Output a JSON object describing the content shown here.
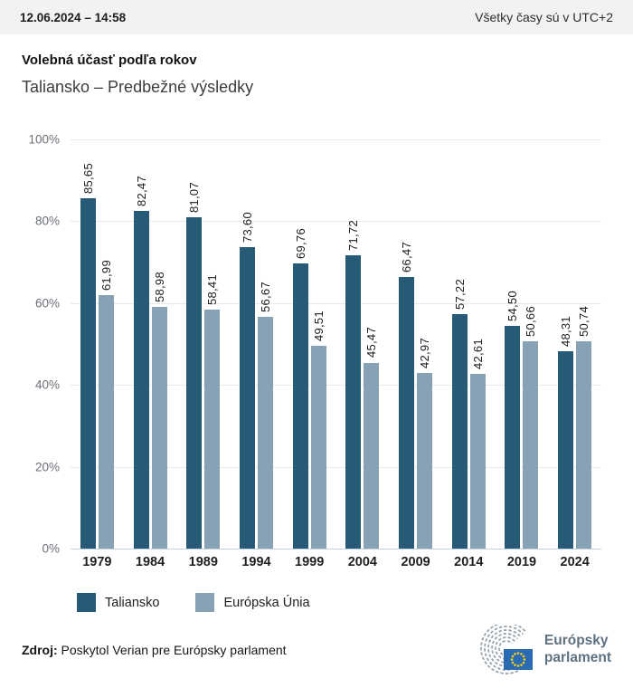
{
  "topbar": {
    "datetime": "12.06.2024 – 14:58",
    "timezone_note": "Všetky časy sú v UTC+2"
  },
  "title": "Volebná účasť podľa rokov",
  "subtitle": "Taliansko – Predbežné výsledky",
  "chart_data": {
    "type": "bar",
    "title": "Volebná účasť podľa rokov",
    "subtitle": "Taliansko – Predbežné výsledky",
    "categories": [
      "1979",
      "1984",
      "1989",
      "1994",
      "1999",
      "2004",
      "2009",
      "2014",
      "2019",
      "2024"
    ],
    "series": [
      {
        "name": "Taliansko",
        "color": "#265a77",
        "values": [
          85.65,
          82.47,
          81.07,
          73.6,
          69.76,
          71.72,
          66.47,
          57.22,
          54.5,
          48.31
        ],
        "value_labels": [
          "85,65",
          "82,47",
          "81,07",
          "73,60",
          "69,76",
          "71,72",
          "66,47",
          "57,22",
          "54,50",
          "48,31"
        ]
      },
      {
        "name": "Európska Únia",
        "color": "#87a1b5",
        "values": [
          61.99,
          58.98,
          58.41,
          56.67,
          49.51,
          45.47,
          42.97,
          42.61,
          50.66,
          50.74
        ],
        "value_labels": [
          "61,99",
          "58,98",
          "58,41",
          "56,67",
          "49,51",
          "45,47",
          "42,97",
          "42,61",
          "50,66",
          "50,74"
        ]
      }
    ],
    "ylim": [
      0,
      100
    ],
    "y_ticks": [
      "100%",
      "80%",
      "60%",
      "40%",
      "20%",
      "0%"
    ],
    "grid": true,
    "legend_position": "bottom",
    "value_label_rotation": -90
  },
  "legend": [
    {
      "label": "Taliansko",
      "color": "#265a77"
    },
    {
      "label": "Európska Únia",
      "color": "#87a1b5"
    }
  ],
  "footer": {
    "source_label": "Zdroj:",
    "source_text": " Poskytol Verian pre Európsky parlament",
    "logo_text_line1": "Európsky",
    "logo_text_line2": "parlament"
  },
  "colors": {
    "series1": "#265a77",
    "series2": "#87a1b5",
    "topbar_bg": "#f2f2f2",
    "gridline": "#e9e9e9",
    "baseline": "#c6d4e1",
    "eu_flag_blue": "#2a6ab3",
    "eu_star_yellow": "#f7d117",
    "hemicycle_gray": "#97a1aa",
    "wordmark": "#5d7181"
  }
}
